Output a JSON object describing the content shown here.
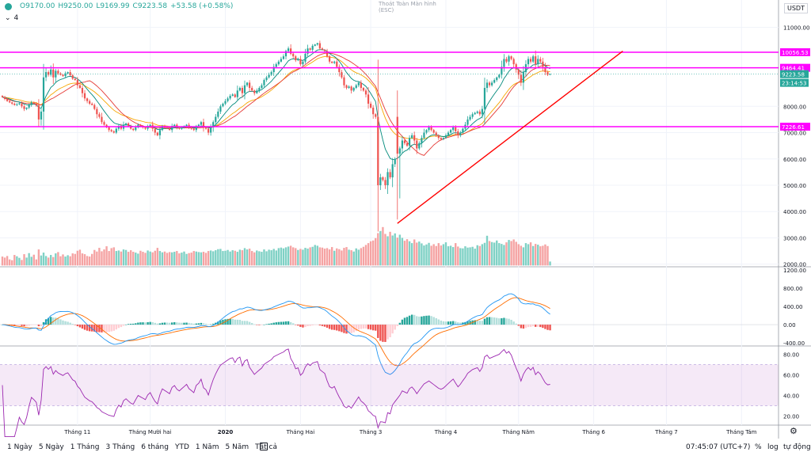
{
  "header": {
    "open": "O9170.00",
    "high": "H9250.00",
    "low": "L9169.99",
    "close": "C9223.58",
    "change": "+53.58 (+0.58%)",
    "indicator_count": "4",
    "center_note_line1": "Thoát Toàn Màn hình",
    "center_note_line2": "(ESC)",
    "currency": "USDT"
  },
  "colors": {
    "up": "#26a69a",
    "down": "#ef5350",
    "level": "#ff00ff",
    "trend": "#ff0000",
    "macd": "#2196f3",
    "signal": "#ff6d00",
    "rsi": "#9c27b0"
  },
  "toolbar": {
    "ranges": [
      "1 Ngày",
      "5 Ngày",
      "1 Tháng",
      "3 Tháng",
      "6 tháng",
      "YTD",
      "1 Năm",
      "5 Năm",
      "Tất cả"
    ],
    "clock": "07:45:07 (UTC+7)",
    "percent": "%",
    "log": "log",
    "auto": "tự động"
  },
  "chart_data": [
    {
      "type": "candlestick",
      "pane": "price",
      "ylim": [
        1900,
        11500
      ],
      "y_ticks": [
        {
          "v": 2000,
          "label": "2000.00"
        },
        {
          "v": 3000,
          "label": "3000.00"
        },
        {
          "v": 4000,
          "label": "4000.00"
        },
        {
          "v": 5000,
          "label": "5000.00"
        },
        {
          "v": 6000,
          "label": "6000.00"
        },
        {
          "v": 7000,
          "label": "7000.00"
        },
        {
          "v": 8000,
          "label": "8000.00"
        },
        {
          "v": 11000,
          "label": "11000.00"
        }
      ],
      "x_ticks": [
        {
          "day": 31,
          "label": "Tháng 11"
        },
        {
          "day": 61,
          "label": "Tháng Mười hai"
        },
        {
          "day": 92,
          "label": "2020"
        },
        {
          "day": 123,
          "label": "Tháng Hai"
        },
        {
          "day": 152,
          "label": "Tháng 3"
        },
        {
          "day": 183,
          "label": "Tháng 4"
        },
        {
          "day": 213,
          "label": "Tháng Năm"
        },
        {
          "day": 244,
          "label": "Tháng 6"
        },
        {
          "day": 274,
          "label": "Tháng 7"
        },
        {
          "day": 305,
          "label": "Tháng Tám"
        }
      ],
      "levels": [
        {
          "price": 10056.53,
          "label": "10056.53"
        },
        {
          "price": 9464.41,
          "label": "9464.41"
        },
        {
          "price": 7226.61,
          "label": "7226.61"
        }
      ],
      "last_price": {
        "price": 9223.58,
        "label": "9223.58",
        "countdown": "23:14:53"
      },
      "trendline": [
        {
          "day": 163,
          "price": 3550
        },
        {
          "day": 256,
          "price": 10100
        }
      ],
      "closes": [
        8350,
        8280,
        8200,
        8150,
        8100,
        8050,
        8080,
        8120,
        8000,
        7900,
        7950,
        8050,
        8150,
        8100,
        8030,
        7500,
        7800,
        9100,
        9300,
        9200,
        9400,
        9100,
        9350,
        9250,
        9200,
        9150,
        9250,
        9300,
        9180,
        9050,
        9000,
        8800,
        8700,
        8500,
        8300,
        8200,
        8100,
        8050,
        7900,
        7700,
        7600,
        7400,
        7300,
        7200,
        7100,
        7050,
        7000,
        7150,
        7250,
        7150,
        7300,
        7350,
        7250,
        7150,
        7100,
        7200,
        7300,
        7250,
        7200,
        7150,
        7250,
        7300,
        7150,
        7000,
        6900,
        7100,
        7250,
        7200,
        7150,
        7100,
        7250,
        7300,
        7200,
        7150,
        7200,
        7250,
        7300,
        7200,
        7150,
        7100,
        7250,
        7300,
        7400,
        7200,
        7150,
        7000,
        7200,
        7400,
        7600,
        7800,
        8000,
        8100,
        8200,
        8300,
        8400,
        8450,
        8350,
        8600,
        8700,
        8500,
        8800,
        8900,
        8700,
        8600,
        8500,
        8600,
        8700,
        8800,
        9000,
        9100,
        9200,
        9300,
        9500,
        9600,
        9700,
        9800,
        9900,
        10100,
        10200,
        10000,
        9900,
        9750,
        9800,
        9600,
        9700,
        10000,
        10200,
        10150,
        10300,
        10350,
        10400,
        10200,
        10150,
        10100,
        9900,
        9700,
        9650,
        9700,
        9500,
        9300,
        9100,
        8800,
        8700,
        8750,
        8600,
        8700,
        8800,
        8900,
        8700,
        8600,
        8450,
        8100,
        7950,
        7700,
        7600,
        5000,
        5300,
        5200,
        5000,
        5500,
        5300,
        5800,
        6000,
        6200,
        6400,
        6700,
        6600,
        6500,
        6800,
        6900,
        6700,
        6400,
        6600,
        6800,
        7000,
        7100,
        7200,
        7100,
        7000,
        6900,
        6800,
        6750,
        6800,
        6900,
        7000,
        7100,
        7200,
        7050,
        6900,
        7000,
        7150,
        7300,
        7500,
        7600,
        7700,
        7750,
        7800,
        7700,
        7900,
        8700,
        8900,
        8800,
        8900,
        9000,
        9100,
        9200,
        9500,
        9800,
        9700,
        9900,
        9800,
        9600,
        9400,
        9200,
        8900,
        9300,
        9600,
        9800,
        9700,
        9900,
        9600,
        9800,
        9700,
        9500,
        9300,
        9200,
        9223
      ]
    },
    {
      "type": "bar",
      "pane": "volume",
      "series": [
        {
          "name": "",
          "values": [
            2290,
            2250,
            2310,
            2180,
            2150,
            2350,
            2300,
            2240,
            2160,
            2380,
            2250,
            2420,
            2280,
            2360,
            2180,
            2560,
            2330,
            2440,
            2310,
            2250,
            2350,
            2270,
            2410,
            2460,
            2300,
            2370,
            2290,
            2340,
            2300,
            2410,
            2390,
            2510,
            2550,
            2410,
            2380,
            2310,
            2290,
            2390,
            2540,
            2480,
            2620,
            2490,
            2560,
            2680,
            2500,
            2610,
            2640,
            2500,
            2520,
            2480,
            2560,
            2540,
            2470,
            2530,
            2470,
            2440,
            2400,
            2510,
            2470,
            2430,
            2520,
            2480,
            2450,
            2510,
            2620,
            2500,
            2450,
            2480,
            2430,
            2460,
            2450,
            2470,
            2500,
            2410,
            2440,
            2480,
            2390,
            2420,
            2440,
            2500,
            2480,
            2460,
            2450,
            2470,
            2430,
            2500,
            2520,
            2490,
            2530,
            2570,
            2580,
            2500,
            2510,
            2540,
            2480,
            2530,
            2510,
            2470,
            2550,
            2530,
            2610,
            2560,
            2590,
            2500,
            2450,
            2520,
            2490,
            2470,
            2560,
            2490,
            2550,
            2530,
            2580,
            2520,
            2610,
            2630,
            2600,
            2640,
            2670,
            2700,
            2640,
            2610,
            2540,
            2580,
            2550,
            2620,
            2590,
            2640,
            2660,
            2730,
            2700,
            2640,
            2630,
            2590,
            2610,
            2560,
            2650,
            2510,
            2600,
            2570,
            2520,
            2620,
            2650,
            2550,
            2530,
            2480,
            2600,
            2550,
            2610,
            2660,
            2730,
            2800,
            2870,
            2900,
            2990,
            3180,
            3260,
            3410,
            3150,
            3060,
            3230,
            3090,
            3170,
            3010,
            3120,
            3000,
            2890,
            2950,
            2870,
            2800,
            2940,
            2820,
            2860,
            2790,
            2710,
            2750,
            2810,
            2700,
            2760,
            2690,
            2800,
            2710,
            2760,
            2830,
            2680,
            2700,
            2650,
            2800,
            2670,
            2610,
            2600,
            2680,
            2630,
            2640,
            2660,
            2590,
            2720,
            2690,
            2760,
            2810,
            3080,
            2880,
            2840,
            2820,
            2900,
            2800,
            2770,
            2730,
            2830,
            2920,
            2880,
            2940,
            2850,
            2760,
            2700,
            2640,
            2800,
            2760,
            2830,
            2690,
            2770,
            2740,
            2680,
            2700,
            2750,
            2690,
            2100
          ]
        }
      ]
    },
    {
      "type": "line",
      "pane": "macd",
      "ylim": [
        -450,
        1250
      ],
      "y_ticks": [
        {
          "v": -400,
          "label": "-400.00"
        },
        {
          "v": 0,
          "label": "0.00"
        },
        {
          "v": 400,
          "label": "400.00"
        },
        {
          "v": 800,
          "label": "800.00"
        },
        {
          "v": 1200,
          "label": "1200.00"
        }
      ]
    },
    {
      "type": "line",
      "pane": "rsi",
      "ylim": [
        12,
        88
      ],
      "band": [
        30,
        70
      ],
      "y_ticks": [
        {
          "v": 20,
          "label": "20.00"
        },
        {
          "v": 40,
          "label": "40.00"
        },
        {
          "v": 60,
          "label": "60.00"
        },
        {
          "v": 80,
          "label": "80.00"
        }
      ]
    }
  ]
}
